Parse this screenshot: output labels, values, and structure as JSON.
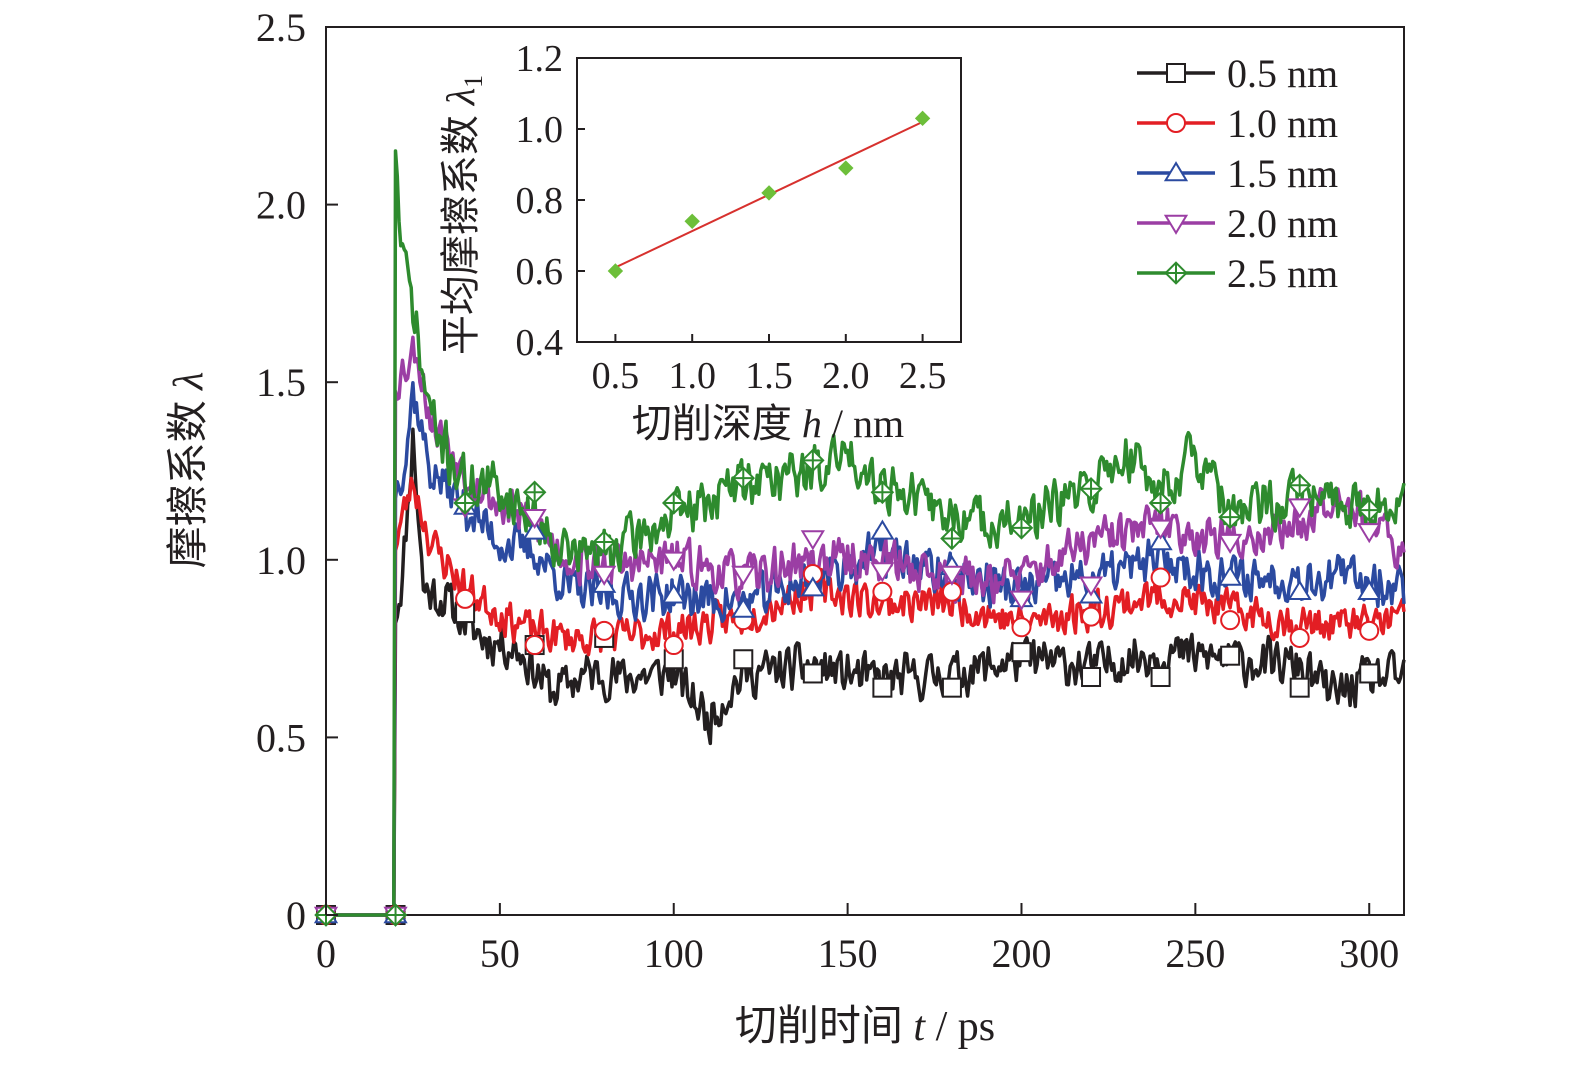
{
  "chart_data": [
    {
      "type": "line",
      "xlabel": "切削时间 t / ps",
      "xlabel_parts": {
        "text": "切削时间",
        "var": "t",
        "unit": "/ ps"
      },
      "ylabel": "摩擦系数 λ",
      "ylabel_parts": {
        "text": "摩擦系数",
        "var": "λ"
      },
      "xlim": [
        0,
        310
      ],
      "ylim": [
        0,
        2.5
      ],
      "x_ticks": [
        "0",
        "50",
        "100",
        "150",
        "200",
        "250",
        "300"
      ],
      "x_tick_values": [
        0,
        50,
        100,
        150,
        200,
        250,
        300
      ],
      "y_ticks": [
        "0",
        "0.5",
        "1.0",
        "1.5",
        "2.0",
        "2.5"
      ],
      "y_tick_values": [
        0,
        0.5,
        1.0,
        1.5,
        2.0,
        2.5
      ],
      "legend_position": "top-right",
      "grid": false,
      "marker_x": [
        0,
        20,
        40,
        60,
        80,
        100,
        120,
        140,
        160,
        180,
        200,
        220,
        240,
        260,
        280,
        300
      ],
      "series": [
        {
          "name": "0.5 nm",
          "color": "#231f20",
          "marker": "square",
          "start_x": 19.5,
          "step": 1,
          "seed": 11,
          "noise": 0.035,
          "levels": [
            [
              0,
              0
            ],
            [
              19.5,
              0
            ],
            [
              20,
              0.85
            ],
            [
              22,
              0.95
            ],
            [
              25,
              1.35
            ],
            [
              28,
              0.92
            ],
            [
              35,
              0.88
            ],
            [
              45,
              0.78
            ],
            [
              55,
              0.75
            ],
            [
              65,
              0.63
            ],
            [
              75,
              0.68
            ],
            [
              85,
              0.67
            ],
            [
              100,
              0.68
            ],
            [
              110,
              0.55
            ],
            [
              120,
              0.68
            ],
            [
              140,
              0.7
            ],
            [
              160,
              0.66
            ],
            [
              180,
              0.68
            ],
            [
              200,
              0.72
            ],
            [
              220,
              0.7
            ],
            [
              240,
              0.74
            ],
            [
              260,
              0.72
            ],
            [
              280,
              0.7
            ],
            [
              290,
              0.62
            ],
            [
              300,
              0.67
            ],
            [
              310,
              0.67
            ]
          ],
          "marker_y": [
            0,
            0,
            0.85,
            0.76,
            0.78,
            0.72,
            0.72,
            0.68,
            0.64,
            0.64,
            0.74,
            0.67,
            0.67,
            0.73,
            0.64,
            0.68
          ]
        },
        {
          "name": "1.0 nm",
          "color": "#e31e24",
          "marker": "circle",
          "start_x": 19.5,
          "step": 1,
          "seed": 23,
          "noise": 0.03,
          "levels": [
            [
              0,
              0
            ],
            [
              19.5,
              0
            ],
            [
              20,
              1.05
            ],
            [
              22,
              1.12
            ],
            [
              25,
              1.22
            ],
            [
              30,
              1.05
            ],
            [
              40,
              0.92
            ],
            [
              50,
              0.85
            ],
            [
              60,
              0.8
            ],
            [
              70,
              0.78
            ],
            [
              80,
              0.78
            ],
            [
              100,
              0.8
            ],
            [
              120,
              0.84
            ],
            [
              140,
              0.92
            ],
            [
              160,
              0.88
            ],
            [
              180,
              0.88
            ],
            [
              200,
              0.82
            ],
            [
              220,
              0.86
            ],
            [
              240,
              0.9
            ],
            [
              260,
              0.86
            ],
            [
              280,
              0.82
            ],
            [
              300,
              0.82
            ],
            [
              310,
              0.84
            ]
          ],
          "marker_y": [
            0,
            0,
            0.89,
            0.76,
            0.8,
            0.76,
            0.83,
            0.96,
            0.91,
            0.91,
            0.81,
            0.84,
            0.95,
            0.83,
            0.78,
            0.8
          ]
        },
        {
          "name": "1.5 nm",
          "color": "#2b4aa0",
          "marker": "triangle-up",
          "start_x": 19.5,
          "step": 1,
          "seed": 37,
          "noise": 0.035,
          "levels": [
            [
              0,
              0
            ],
            [
              19.5,
              0
            ],
            [
              20,
              1.2
            ],
            [
              23,
              1.3
            ],
            [
              25,
              1.48
            ],
            [
              30,
              1.25
            ],
            [
              40,
              1.15
            ],
            [
              50,
              1.05
            ],
            [
              60,
              1.02
            ],
            [
              70,
              0.92
            ],
            [
              80,
              0.9
            ],
            [
              100,
              0.9
            ],
            [
              120,
              0.88
            ],
            [
              140,
              0.95
            ],
            [
              160,
              1.02
            ],
            [
              180,
              0.95
            ],
            [
              200,
              0.92
            ],
            [
              220,
              0.95
            ],
            [
              240,
              1.0
            ],
            [
              260,
              0.95
            ],
            [
              280,
              0.95
            ],
            [
              300,
              0.95
            ],
            [
              310,
              0.92
            ]
          ],
          "marker_y": [
            0,
            0,
            1.15,
            1.08,
            0.93,
            0.9,
            0.86,
            0.92,
            1.08,
            0.98,
            0.89,
            0.9,
            1.05,
            0.95,
            0.91,
            0.91
          ]
        },
        {
          "name": "2.0 nm",
          "color": "#9b3ea4",
          "marker": "triangle-down",
          "start_x": 19.5,
          "step": 1,
          "seed": 53,
          "noise": 0.035,
          "levels": [
            [
              0,
              0
            ],
            [
              19.5,
              0
            ],
            [
              20,
              1.5
            ],
            [
              23,
              1.55
            ],
            [
              26,
              1.6
            ],
            [
              30,
              1.4
            ],
            [
              40,
              1.25
            ],
            [
              50,
              1.15
            ],
            [
              60,
              1.1
            ],
            [
              70,
              1.0
            ],
            [
              80,
              0.98
            ],
            [
              100,
              1.0
            ],
            [
              120,
              0.95
            ],
            [
              140,
              1.0
            ],
            [
              160,
              1.0
            ],
            [
              180,
              0.95
            ],
            [
              200,
              0.95
            ],
            [
              220,
              1.05
            ],
            [
              240,
              1.1
            ],
            [
              260,
              1.05
            ],
            [
              280,
              1.1
            ],
            [
              290,
              1.2
            ],
            [
              300,
              1.12
            ],
            [
              310,
              1.0
            ]
          ],
          "marker_y": [
            0,
            0,
            1.15,
            1.12,
            0.96,
            1.0,
            0.96,
            1.06,
            0.97,
            0.96,
            0.89,
            0.93,
            1.09,
            1.05,
            1.15,
            1.08
          ]
        },
        {
          "name": "2.5 nm",
          "color": "#2e8b2e",
          "marker": "diamond-cross",
          "start_x": 19.5,
          "step": 1,
          "seed": 71,
          "noise": 0.04,
          "levels": [
            [
              0,
              0
            ],
            [
              19.5,
              0
            ],
            [
              20,
              2.18
            ],
            [
              21,
              1.95
            ],
            [
              23,
              1.8
            ],
            [
              25,
              1.72
            ],
            [
              28,
              1.5
            ],
            [
              32,
              1.35
            ],
            [
              40,
              1.22
            ],
            [
              50,
              1.2
            ],
            [
              60,
              1.12
            ],
            [
              70,
              1.02
            ],
            [
              80,
              1.02
            ],
            [
              100,
              1.12
            ],
            [
              120,
              1.22
            ],
            [
              140,
              1.25
            ],
            [
              150,
              1.3
            ],
            [
              160,
              1.22
            ],
            [
              180,
              1.12
            ],
            [
              200,
              1.1
            ],
            [
              220,
              1.2
            ],
            [
              230,
              1.3
            ],
            [
              240,
              1.2
            ],
            [
              250,
              1.3
            ],
            [
              260,
              1.12
            ],
            [
              280,
              1.18
            ],
            [
              300,
              1.15
            ],
            [
              310,
              1.15
            ]
          ],
          "marker_y": [
            0,
            0,
            1.16,
            1.19,
            1.05,
            1.16,
            1.23,
            1.28,
            1.19,
            1.06,
            1.09,
            1.2,
            1.16,
            1.12,
            1.21,
            1.14
          ]
        }
      ]
    },
    {
      "type": "scatter",
      "xlabel": "切削深度 h / nm",
      "xlabel_parts": {
        "text": "切削深度",
        "var": "h",
        "unit": "/ nm"
      },
      "ylabel": "平均摩擦系数 λ1",
      "ylabel_parts": {
        "text": "平均摩擦系数",
        "var": "λ",
        "sub": "1"
      },
      "xlim": [
        0.25,
        2.75
      ],
      "ylim": [
        0.4,
        1.2
      ],
      "x_ticks": [
        "0.5",
        "1.0",
        "1.5",
        "2.0",
        "2.5"
      ],
      "x_tick_values": [
        0.5,
        1.0,
        1.5,
        2.0,
        2.5
      ],
      "y_ticks": [
        "0.4",
        "0.6",
        "0.8",
        "1.0",
        "1.2"
      ],
      "y_tick_values": [
        0.4,
        0.6,
        0.8,
        1.0,
        1.2
      ],
      "series": [
        {
          "name": "",
          "x": [
            0.5,
            1.0,
            1.5,
            2.0,
            2.5
          ],
          "values": [
            0.6,
            0.74,
            0.82,
            0.89,
            1.03
          ],
          "color": "#6dbf3a",
          "marker": "diamond"
        }
      ],
      "fit_line": {
        "x": [
          0.5,
          2.5
        ],
        "y": [
          0.61,
          1.02
        ],
        "color": "#d7312e"
      }
    }
  ]
}
